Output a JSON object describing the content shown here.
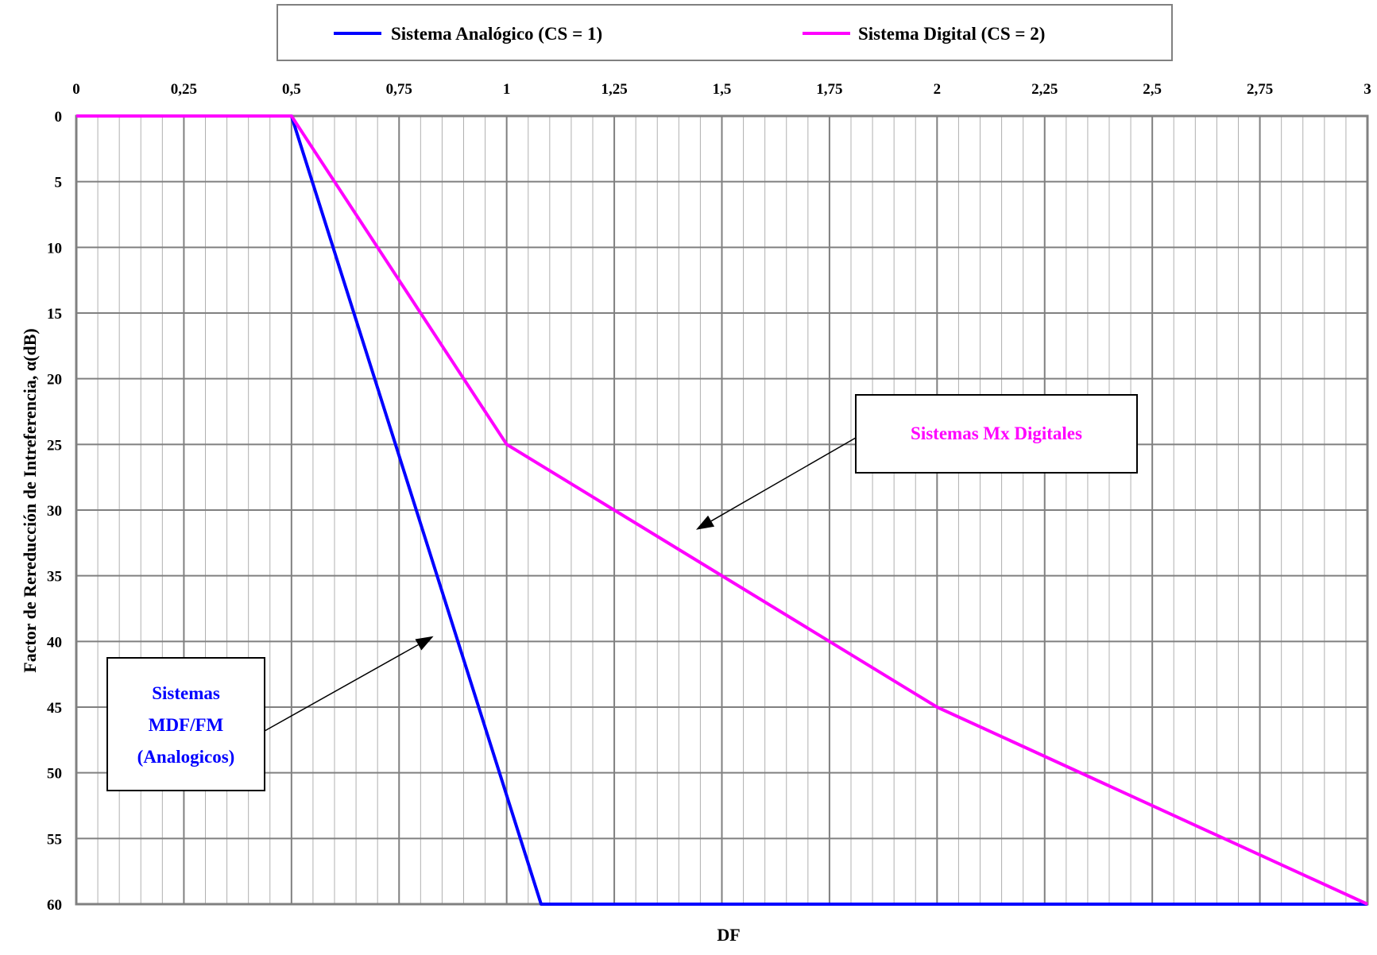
{
  "chart_data": {
    "type": "line",
    "xlabel": "DF",
    "ylabel": "Factor de Rereducción de Intreferencia, α(dB)",
    "xlim": [
      0,
      3
    ],
    "ylim": [
      0,
      60
    ],
    "y_axis_inverted": true,
    "x_axis_position": "top",
    "x_ticks": [
      "0",
      "0,25",
      "0,5",
      "0,75",
      "1",
      "1,25",
      "1,5",
      "1,75",
      "2",
      "2,25",
      "2,5",
      "2,75",
      "3"
    ],
    "y_ticks": [
      "0",
      "5",
      "10",
      "15",
      "20",
      "25",
      "30",
      "35",
      "40",
      "45",
      "50",
      "55",
      "60"
    ],
    "grid": true,
    "legend_position": "top",
    "series": [
      {
        "name": "Sistema Analógico (CS = 1)",
        "color": "#0000FF",
        "x": [
          0,
          0.5,
          1.08,
          3
        ],
        "y": [
          0,
          0,
          60,
          60
        ]
      },
      {
        "name": "Sistema Digital (CS = 2)",
        "color": "#FF00FF",
        "x": [
          0,
          0.5,
          1.0,
          2.0,
          3.0
        ],
        "y": [
          0,
          0,
          25,
          45,
          60
        ]
      }
    ],
    "annotations": [
      {
        "label": "Sistemas Mx Digitales",
        "color": "#FF00FF",
        "arrow_to": [
          1.44,
          31.5
        ]
      },
      {
        "lines": [
          "Sistemas",
          "MDF/FM",
          "(Analogicos)"
        ],
        "color": "#0000FF",
        "arrow_to": [
          0.83,
          39.6
        ]
      }
    ]
  }
}
